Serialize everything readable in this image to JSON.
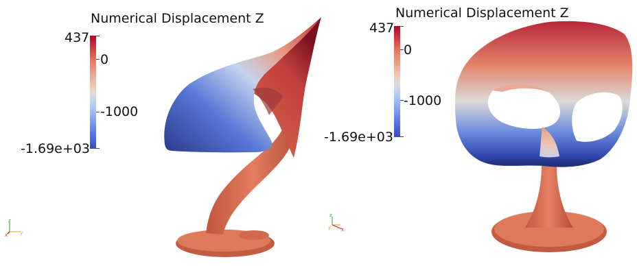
{
  "views": [
    {
      "id": "left",
      "colorbar": {
        "title": "Numerical Displacement Z",
        "max_label": "437",
        "mid_label_1": "0",
        "mid_label_2": "-1000",
        "min_label": "-1.69e+03"
      },
      "axes": {
        "x": "x",
        "y": "y",
        "z": "z"
      }
    },
    {
      "id": "right",
      "colorbar": {
        "title": "Numerical Displacement Z",
        "max_label": "437",
        "mid_label_1": "0",
        "mid_label_2": "-1000",
        "min_label": "-1.69e+03"
      },
      "axes": {
        "x": "x",
        "y": "y",
        "z": "z"
      }
    }
  ],
  "colors": {
    "max": "#b40426",
    "mid": "#dddcdc",
    "min": "#3b4cc0",
    "base": "#e07659"
  }
}
